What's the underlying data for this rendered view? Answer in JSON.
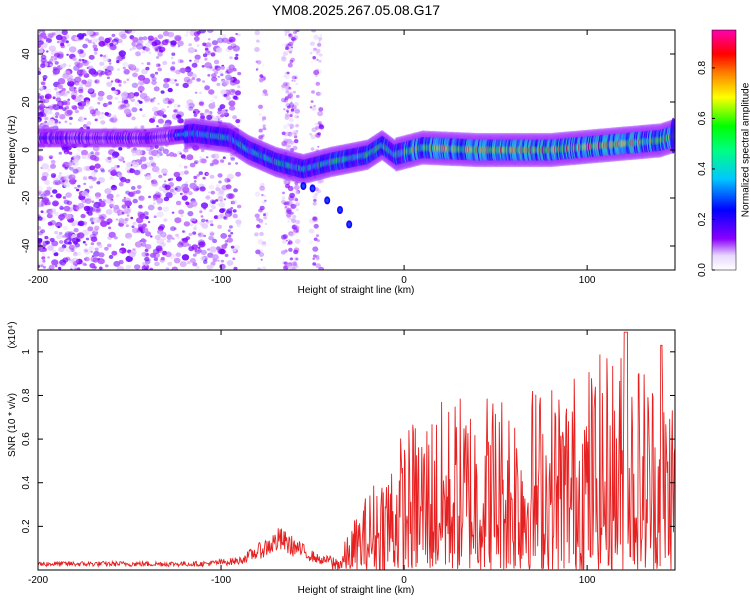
{
  "title": "YM08.2025.267.05.08.G17",
  "chart_data": [
    {
      "type": "heatmap",
      "title": "YM08.2025.267.05.08.G17",
      "xlabel": "Height of straight line (km)",
      "ylabel": "Frequency (Hz)",
      "xlim": [
        -200,
        148
      ],
      "ylim": [
        -50,
        50
      ],
      "xticks": [
        -200,
        -100,
        0,
        100
      ],
      "yticks": [
        -40,
        -20,
        0,
        20,
        40
      ],
      "colorbar": {
        "label": "Normalized spectral amplitude",
        "range": [
          0.0,
          0.95
        ],
        "ticks": [
          0.0,
          0.2,
          0.4,
          0.6,
          0.8
        ],
        "colors": [
          "#ffffff",
          "#8a00ff",
          "#0000ff",
          "#00c8ff",
          "#00ff40",
          "#ffff00",
          "#ff8000",
          "#ff0000",
          "#ff00b0"
        ]
      },
      "ridge": {
        "points": [
          {
            "x": -200,
            "y": 5
          },
          {
            "x": -140,
            "y": 5
          },
          {
            "x": -115,
            "y": 7
          },
          {
            "x": -95,
            "y": 5
          },
          {
            "x": -85,
            "y": 0
          },
          {
            "x": -70,
            "y": -5
          },
          {
            "x": -55,
            "y": -8
          },
          {
            "x": -40,
            "y": -5
          },
          {
            "x": -20,
            "y": -2
          },
          {
            "x": -12,
            "y": 2
          },
          {
            "x": -5,
            "y": -2
          },
          {
            "x": 10,
            "y": 1
          },
          {
            "x": 40,
            "y": 0
          },
          {
            "x": 80,
            "y": 0
          },
          {
            "x": 110,
            "y": 2
          },
          {
            "x": 140,
            "y": 4
          },
          {
            "x": 148,
            "y": 6
          }
        ],
        "tail": [
          {
            "x": -55,
            "y": -15
          },
          {
            "x": -50,
            "y": -16
          },
          {
            "x": -42,
            "y": -21
          },
          {
            "x": -35,
            "y": -25
          },
          {
            "x": -30,
            "y": -31
          }
        ]
      }
    },
    {
      "type": "line",
      "xlabel": "Height of straight line (km)",
      "ylabel": "SNR (10 * v/v)",
      "yscale_label": "(x10⁴)",
      "xlim": [
        -200,
        148
      ],
      "ylim": [
        0.0,
        1.1
      ],
      "xticks": [
        -200,
        -100,
        0,
        100
      ],
      "yticks": [
        0.2,
        0.4,
        0.6,
        0.8,
        1.0
      ],
      "color": "#e62020",
      "envelope": [
        {
          "x": -200,
          "y": 0.04
        },
        {
          "x": -110,
          "y": 0.04
        },
        {
          "x": -90,
          "y": 0.06
        },
        {
          "x": -75,
          "y": 0.15
        },
        {
          "x": -68,
          "y": 0.2
        },
        {
          "x": -60,
          "y": 0.15
        },
        {
          "x": -45,
          "y": 0.06
        },
        {
          "x": -35,
          "y": 0.08
        },
        {
          "x": -25,
          "y": 0.28
        },
        {
          "x": -15,
          "y": 0.45
        },
        {
          "x": -5,
          "y": 0.6
        },
        {
          "x": 10,
          "y": 0.75
        },
        {
          "x": 40,
          "y": 0.85
        },
        {
          "x": 80,
          "y": 0.88
        },
        {
          "x": 120,
          "y": 1.05
        },
        {
          "x": 148,
          "y": 0.9
        }
      ]
    }
  ]
}
